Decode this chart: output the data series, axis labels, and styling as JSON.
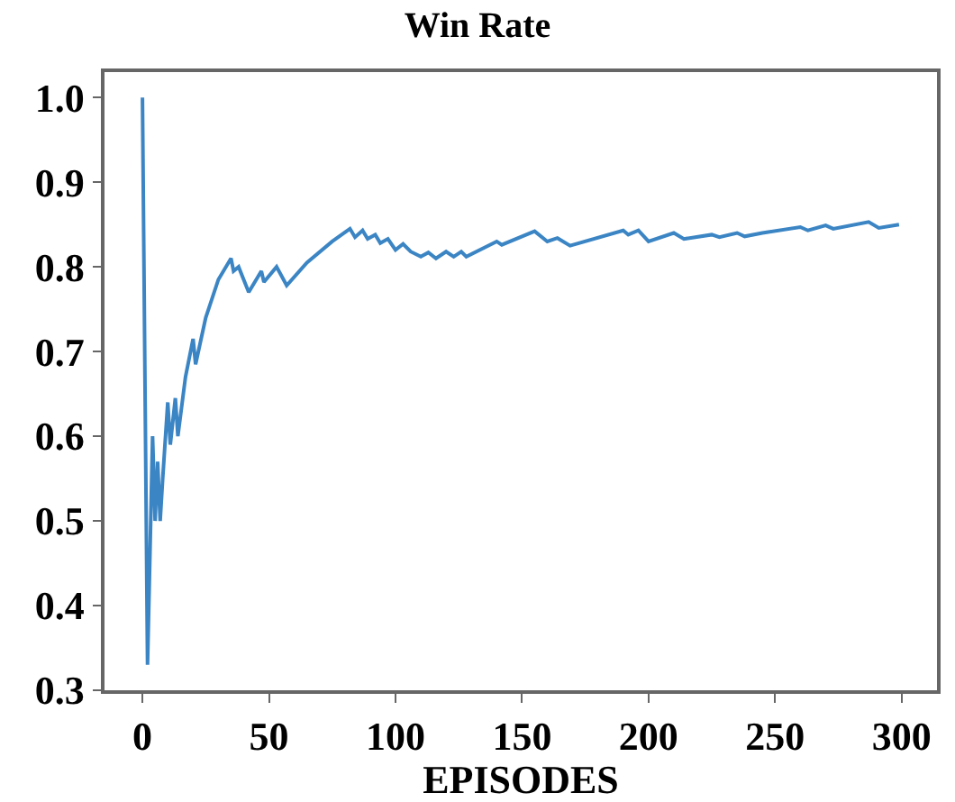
{
  "chart_data": {
    "type": "line",
    "title": "Win Rate",
    "xlabel": "EPISODES",
    "xlim": [
      -15,
      314
    ],
    "xticks": [
      0,
      50,
      100,
      150,
      200,
      250,
      300
    ],
    "ylim": [
      0.3,
      1.03
    ],
    "yticks": [
      {
        "value": 0.3,
        "label": "0.3"
      },
      {
        "value": 0.4,
        "label": "0.4"
      },
      {
        "value": 0.5,
        "label": "0.5"
      },
      {
        "value": 0.6,
        "label": "0.6"
      },
      {
        "value": 0.7,
        "label": "0.7"
      },
      {
        "value": 0.8,
        "label": "0.8"
      },
      {
        "value": 0.9,
        "label": "0.9"
      },
      {
        "value": 1.0,
        "label": "1.0"
      }
    ],
    "series": [
      {
        "color": "#3b85c4",
        "x": [
          0,
          2,
          4,
          5,
          6,
          7,
          8,
          10,
          11,
          13,
          14,
          17,
          20,
          21,
          25,
          30,
          35,
          36,
          38,
          40,
          42,
          47,
          48,
          53,
          57,
          65,
          75,
          82,
          84,
          87,
          89,
          92,
          94,
          97,
          100,
          103,
          106,
          110,
          113,
          116,
          120,
          123,
          126,
          128,
          140,
          142,
          155,
          160,
          164,
          169,
          190,
          192,
          196,
          200,
          210,
          214,
          225,
          228,
          235,
          238,
          245,
          260,
          263,
          270,
          273,
          287,
          291,
          299
        ],
        "values": [
          1.0,
          0.33,
          0.6,
          0.5,
          0.57,
          0.5,
          0.55,
          0.64,
          0.59,
          0.645,
          0.6,
          0.67,
          0.715,
          0.685,
          0.74,
          0.785,
          0.81,
          0.795,
          0.8,
          0.785,
          0.77,
          0.795,
          0.782,
          0.8,
          0.778,
          0.805,
          0.83,
          0.845,
          0.835,
          0.843,
          0.833,
          0.838,
          0.828,
          0.833,
          0.82,
          0.827,
          0.818,
          0.812,
          0.817,
          0.81,
          0.818,
          0.812,
          0.818,
          0.812,
          0.83,
          0.826,
          0.842,
          0.83,
          0.834,
          0.825,
          0.843,
          0.838,
          0.843,
          0.83,
          0.84,
          0.833,
          0.838,
          0.835,
          0.84,
          0.836,
          0.84,
          0.847,
          0.843,
          0.849,
          0.845,
          0.853,
          0.846,
          0.85
        ]
      }
    ]
  }
}
